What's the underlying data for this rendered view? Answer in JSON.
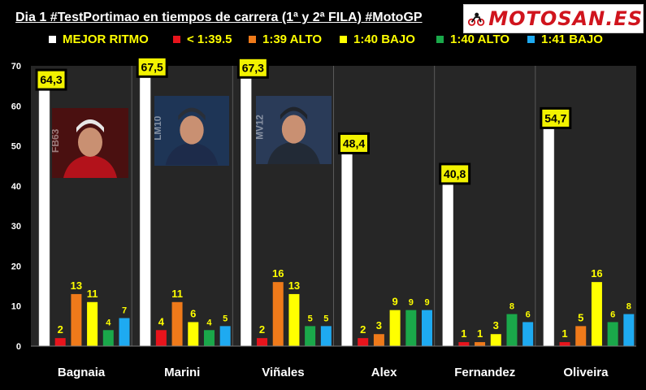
{
  "title": "Dia 1 #TestPortimao en tiempos de carrera (1ª y 2ª FILA) #MotoGP",
  "logo": {
    "text": "MOTOSAN.ES",
    "icon": "motorcycle-rider-icon"
  },
  "colors": {
    "background": "#000000",
    "panel": "#262626",
    "divider": "#5a5a5a",
    "label_box_fill": "#f2f200",
    "label_box_border": "#000000",
    "axis_text": "#ffffff",
    "data_label": "#ffff00"
  },
  "chart_data": {
    "type": "bar",
    "title": "",
    "xlabel": "",
    "ylabel": "",
    "ylim": [
      0,
      70
    ],
    "yticks": [
      0,
      10,
      20,
      30,
      40,
      50,
      60,
      70
    ],
    "grid": false,
    "legend_placement": "top",
    "categories": [
      "Bagnaia",
      "Marini",
      "Viñales",
      "Alex",
      "Fernandez",
      "Oliveira"
    ],
    "series": [
      {
        "name": "MEJOR RITMO",
        "color": "#ffffff",
        "values": [
          64.3,
          67.5,
          67.3,
          48.4,
          40.8,
          54.7
        ],
        "labels": [
          "64,3",
          "67,5",
          "67,3",
          "48,4",
          "40,8",
          "54,7"
        ]
      },
      {
        "name": "< 1:39.5",
        "color": "#e8141c",
        "values": [
          2,
          4,
          2,
          2,
          1,
          1
        ]
      },
      {
        "name": "1:39 ALTO",
        "color": "#ef7a1a",
        "values": [
          13,
          11,
          16,
          3,
          1,
          5
        ]
      },
      {
        "name": "1:40 BAJO",
        "color": "#ffff00",
        "values": [
          11,
          6,
          13,
          9,
          3,
          16
        ]
      },
      {
        "name": "1:40 ALTO",
        "color": "#1aa84a",
        "values": [
          4,
          4,
          5,
          9,
          8,
          6
        ]
      },
      {
        "name": "1:41 BAJO",
        "color": "#1eaaf1",
        "values": [
          7,
          5,
          5,
          9,
          6,
          8
        ]
      }
    ]
  },
  "photos": [
    {
      "rider": "Bagnaia",
      "number": "FB63",
      "suit": "#b3121b",
      "helmet": "#e7e7e7",
      "bg": "#4a1010"
    },
    {
      "rider": "Marini",
      "number": "LM10",
      "suit": "#1d2b4a",
      "helmet": "#2a2f38",
      "bg": "#1e3556"
    },
    {
      "rider": "Viñales",
      "number": "MV12",
      "suit": "#222a36",
      "helmet": "#20242b",
      "bg": "#2a3b58"
    }
  ]
}
